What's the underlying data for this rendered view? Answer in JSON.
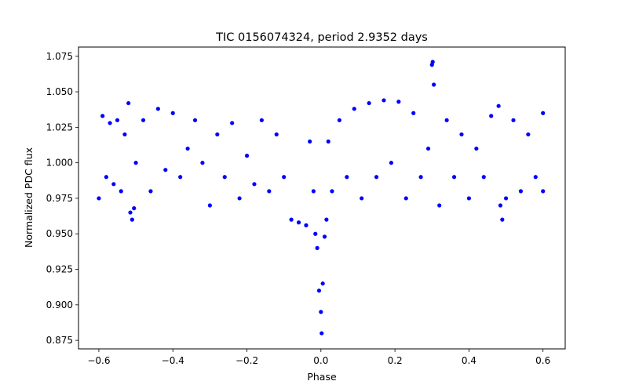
{
  "chart_data": {
    "type": "scatter",
    "title": "TIC 0156074324, period 2.9352 days",
    "xlabel": "Phase",
    "ylabel": "Normalized PDC flux",
    "xlim": [
      -0.655,
      0.66
    ],
    "ylim": [
      0.869,
      1.0815
    ],
    "xticks": [
      -0.6,
      -0.4,
      -0.2,
      0.0,
      0.2,
      0.4,
      0.6
    ],
    "xtick_labels": [
      "−0.6",
      "−0.4",
      "−0.2",
      "0.0",
      "0.2",
      "0.4",
      "0.6"
    ],
    "yticks": [
      0.875,
      0.9,
      0.925,
      0.95,
      0.975,
      1.0,
      1.025,
      1.05,
      1.075
    ],
    "ytick_labels": [
      "0.875",
      "0.900",
      "0.925",
      "0.950",
      "0.975",
      "1.000",
      "1.025",
      "1.050",
      "1.075"
    ],
    "grid": false,
    "legend": "none",
    "marker_color": "#0000ff",
    "series": [
      {
        "points": [
          [
            -0.6,
            0.975
          ],
          [
            -0.59,
            1.033
          ],
          [
            -0.58,
            0.99
          ],
          [
            -0.57,
            1.028
          ],
          [
            -0.56,
            0.985
          ],
          [
            -0.55,
            1.03
          ],
          [
            -0.54,
            0.98
          ],
          [
            -0.53,
            1.02
          ],
          [
            -0.52,
            1.042
          ],
          [
            -0.515,
            0.965
          ],
          [
            -0.51,
            0.96
          ],
          [
            -0.505,
            0.968
          ],
          [
            -0.5,
            1.0
          ],
          [
            -0.48,
            1.03
          ],
          [
            -0.46,
            0.98
          ],
          [
            -0.44,
            1.038
          ],
          [
            -0.42,
            0.995
          ],
          [
            -0.4,
            1.035
          ],
          [
            -0.38,
            0.99
          ],
          [
            -0.36,
            1.01
          ],
          [
            -0.34,
            1.03
          ],
          [
            -0.32,
            1.0
          ],
          [
            -0.3,
            0.97
          ],
          [
            -0.28,
            1.02
          ],
          [
            -0.26,
            0.99
          ],
          [
            -0.24,
            1.028
          ],
          [
            -0.22,
            0.975
          ],
          [
            -0.2,
            1.005
          ],
          [
            -0.18,
            0.985
          ],
          [
            -0.16,
            1.03
          ],
          [
            -0.14,
            0.98
          ],
          [
            -0.12,
            1.02
          ],
          [
            -0.1,
            0.99
          ],
          [
            -0.08,
            0.96
          ],
          [
            -0.06,
            0.958
          ],
          [
            -0.04,
            0.956
          ],
          [
            -0.03,
            1.015
          ],
          [
            -0.02,
            0.98
          ],
          [
            -0.015,
            0.95
          ],
          [
            -0.01,
            0.94
          ],
          [
            -0.005,
            0.91
          ],
          [
            0.0,
            0.895
          ],
          [
            0.002,
            0.88
          ],
          [
            0.005,
            0.915
          ],
          [
            0.01,
            0.948
          ],
          [
            0.015,
            0.96
          ],
          [
            0.02,
            1.015
          ],
          [
            0.03,
            0.98
          ],
          [
            0.05,
            1.03
          ],
          [
            0.07,
            0.99
          ],
          [
            0.09,
            1.038
          ],
          [
            0.11,
            0.975
          ],
          [
            0.13,
            1.042
          ],
          [
            0.15,
            0.99
          ],
          [
            0.17,
            1.044
          ],
          [
            0.19,
            1.0
          ],
          [
            0.21,
            1.043
          ],
          [
            0.23,
            0.975
          ],
          [
            0.25,
            1.035
          ],
          [
            0.27,
            0.99
          ],
          [
            0.29,
            1.01
          ],
          [
            0.3,
            1.069
          ],
          [
            0.302,
            1.071
          ],
          [
            0.305,
            1.055
          ],
          [
            0.32,
            0.97
          ],
          [
            0.34,
            1.03
          ],
          [
            0.36,
            0.99
          ],
          [
            0.38,
            1.02
          ],
          [
            0.4,
            0.975
          ],
          [
            0.42,
            1.01
          ],
          [
            0.44,
            0.99
          ],
          [
            0.46,
            1.033
          ],
          [
            0.48,
            1.04
          ],
          [
            0.485,
            0.97
          ],
          [
            0.49,
            0.96
          ],
          [
            0.5,
            0.975
          ],
          [
            0.52,
            1.03
          ],
          [
            0.54,
            0.98
          ],
          [
            0.56,
            1.02
          ],
          [
            0.58,
            0.99
          ],
          [
            0.6,
            1.035
          ],
          [
            0.6,
            0.98
          ]
        ]
      }
    ]
  }
}
